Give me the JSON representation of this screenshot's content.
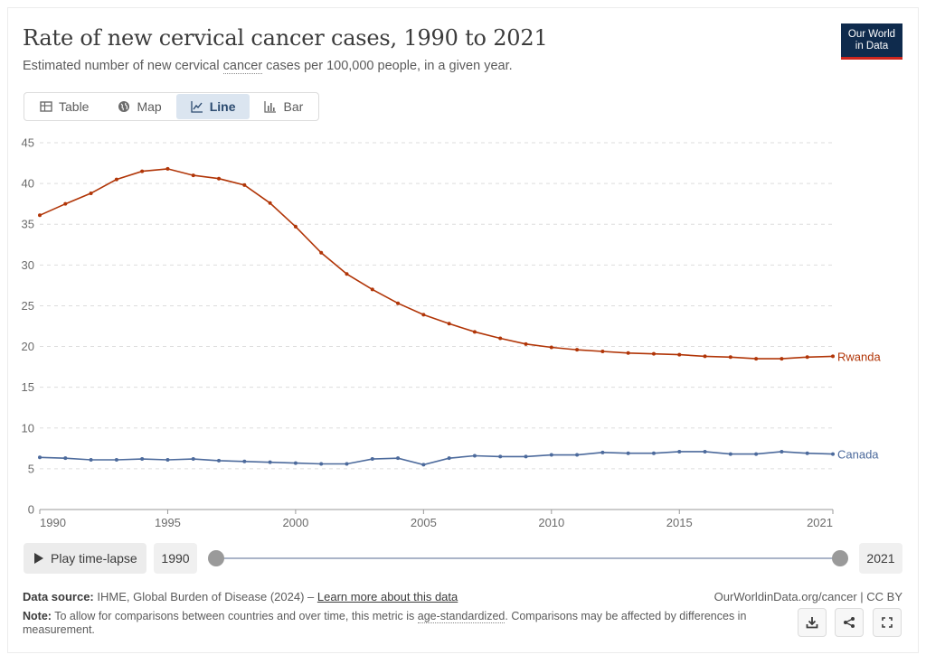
{
  "header": {
    "title": "Rate of new cervical cancer cases, 1990 to 2021",
    "subtitle_pre": "Estimated number of new cervical ",
    "subtitle_link": "cancer",
    "subtitle_post": " cases per 100,000 people, in a given year.",
    "logo_line1": "Our World",
    "logo_line2": "in Data"
  },
  "tabs": [
    {
      "label": "Table",
      "icon": "table-icon"
    },
    {
      "label": "Map",
      "icon": "globe-icon"
    },
    {
      "label": "Line",
      "icon": "line-chart-icon",
      "active": true
    },
    {
      "label": "Bar",
      "icon": "bar-chart-icon"
    }
  ],
  "chart_data": {
    "type": "line",
    "title": "Rate of new cervical cancer cases, 1990 to 2021",
    "xlabel": "",
    "ylabel": "",
    "xlim": [
      1990,
      2021
    ],
    "ylim": [
      0,
      45
    ],
    "x_ticks": [
      1990,
      1995,
      2000,
      2005,
      2010,
      2015,
      2021
    ],
    "y_ticks": [
      0,
      5,
      10,
      15,
      20,
      25,
      30,
      35,
      40,
      45
    ],
    "grid": true,
    "legend": "line-end labels",
    "x": [
      1990,
      1991,
      1992,
      1993,
      1994,
      1995,
      1996,
      1997,
      1998,
      1999,
      2000,
      2001,
      2002,
      2003,
      2004,
      2005,
      2006,
      2007,
      2008,
      2009,
      2010,
      2011,
      2012,
      2013,
      2014,
      2015,
      2016,
      2017,
      2018,
      2019,
      2020,
      2021
    ],
    "series": [
      {
        "name": "Rwanda",
        "color": "#b13507",
        "values": [
          36.1,
          37.5,
          38.8,
          40.5,
          41.5,
          41.8,
          41.0,
          40.6,
          39.8,
          37.6,
          34.7,
          31.5,
          28.9,
          27.0,
          25.3,
          23.9,
          22.8,
          21.8,
          21.0,
          20.3,
          19.9,
          19.6,
          19.4,
          19.2,
          19.1,
          19.0,
          18.8,
          18.7,
          18.5,
          18.5,
          18.7,
          18.8
        ]
      },
      {
        "name": "Canada",
        "color": "#4c6a9c",
        "values": [
          6.4,
          6.3,
          6.1,
          6.1,
          6.2,
          6.1,
          6.2,
          6.0,
          5.9,
          5.8,
          5.7,
          5.6,
          5.6,
          6.2,
          6.3,
          5.5,
          6.3,
          6.6,
          6.5,
          6.5,
          6.7,
          6.7,
          7.0,
          6.9,
          6.9,
          7.1,
          7.1,
          6.8,
          6.8,
          7.1,
          6.9,
          6.8
        ]
      }
    ]
  },
  "controls": {
    "play_label": "Play time-lapse",
    "start_year": "1990",
    "end_year": "2021"
  },
  "footer": {
    "source_label": "Data source:",
    "source_text": " IHME, Global Burden of Disease (2024) – ",
    "source_link": "Learn more about this data",
    "note_label": "Note:",
    "note_pre": " To allow for comparisons between countries and over time, this metric is ",
    "note_link": "age-standardized",
    "note_post": ". Comparisons may be affected by differences in measurement.",
    "owid_link": "OurWorldinData.org/cancer | CC BY"
  }
}
